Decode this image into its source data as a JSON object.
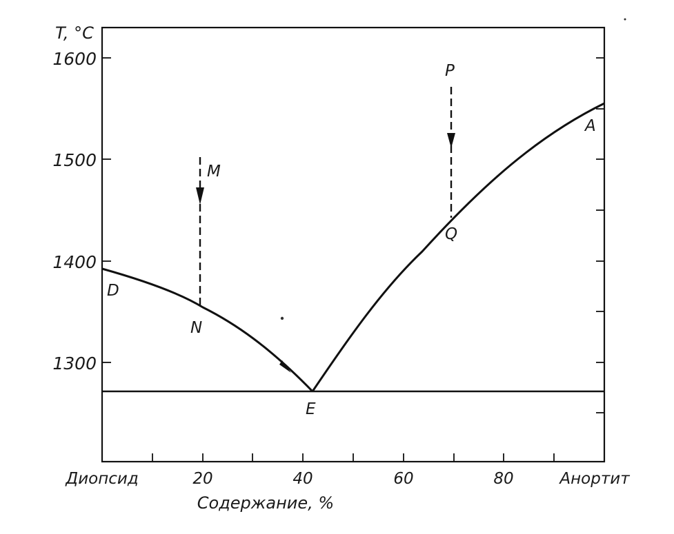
{
  "diagram": {
    "axes": {
      "y_title": "T, °C",
      "x_title": "Содержание, %",
      "y_ticks": [
        "1600",
        "1500",
        "1400",
        "1300"
      ],
      "x_ticks": [
        "Диопсид",
        "20",
        "40",
        "60",
        "80",
        "Анортит"
      ]
    },
    "points": {
      "P": "P",
      "M": "M",
      "A": "A",
      "Q": "Q",
      "D": "D",
      "N": "N",
      "E": "E"
    },
    "colors": {
      "line": "#111111",
      "background": "#ffffff"
    }
  },
  "chart_data": {
    "type": "line",
    "xlabel": "Содержание, %",
    "ylabel": "T, °C",
    "xlim": [
      0,
      100
    ],
    "ylim": [
      1200,
      1630
    ],
    "x_tick_values": [
      0,
      20,
      40,
      60,
      80,
      100
    ],
    "y_tick_values": [
      1300,
      1400,
      1500,
      1600
    ],
    "series": [
      {
        "x": [
          0,
          10,
          20,
          30,
          36,
          42
        ],
        "y": [
          1391,
          1376,
          1355,
          1322,
          1295,
          1270
        ]
      },
      {
        "x": [
          42,
          50,
          60,
          70,
          80,
          90,
          100
        ],
        "y": [
          1270,
          1325,
          1385,
          1438,
          1482,
          1522,
          1553
        ]
      },
      {
        "x": [
          0,
          100
        ],
        "y": [
          1270,
          1270
        ]
      }
    ],
    "annotations": [
      {
        "label": "M",
        "x": 20,
        "y_from": 1500,
        "y_to": 1352,
        "style": "dashed-arrow"
      },
      {
        "label": "P",
        "x": 70,
        "y_from": 1572,
        "y_to": 1438,
        "style": "dashed-arrow"
      }
    ],
    "points": [
      {
        "label": "D",
        "x": 0,
        "y": 1391
      },
      {
        "label": "N",
        "x": 20,
        "y": 1355
      },
      {
        "label": "E",
        "x": 42,
        "y": 1270
      },
      {
        "label": "Q",
        "x": 70,
        "y": 1438
      },
      {
        "label": "A",
        "x": 100,
        "y": 1553
      }
    ]
  }
}
